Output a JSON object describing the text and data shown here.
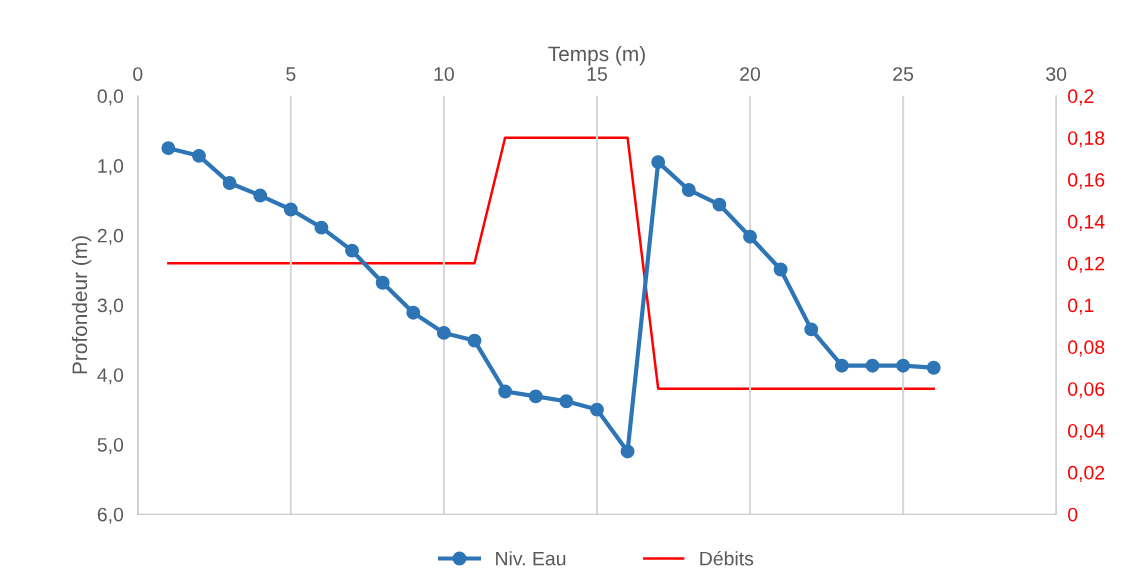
{
  "chart_data": {
    "type": "line",
    "xlabel": "Temps (m)",
    "ylabel": "Profondeur (m)",
    "x": [
      1,
      2,
      3,
      4,
      5,
      6,
      7,
      8,
      9,
      10,
      11,
      12,
      13,
      14,
      15,
      16,
      17,
      18,
      19,
      20,
      21,
      22,
      23,
      24,
      25,
      26
    ],
    "series": [
      {
        "name": "Niv. Eau",
        "color": "#2e75b6",
        "marker": "circle",
        "values": [
          0.75,
          0.86,
          1.25,
          1.43,
          1.63,
          1.89,
          2.22,
          2.68,
          3.11,
          3.4,
          3.51,
          4.24,
          4.31,
          4.38,
          4.5,
          5.1,
          0.95,
          1.35,
          1.56,
          2.02,
          2.49,
          3.35,
          3.87,
          3.87,
          3.87,
          3.9
        ]
      },
      {
        "name": "Débits",
        "color": "#ff0000",
        "marker": "none",
        "axis": "y2",
        "values": [
          0.12,
          0.12,
          0.12,
          0.12,
          0.12,
          0.12,
          0.12,
          0.12,
          0.12,
          0.12,
          0.12,
          0.18,
          0.18,
          0.18,
          0.18,
          0.18,
          0.06,
          0.06,
          0.06,
          0.06,
          0.06,
          0.06,
          0.06,
          0.06,
          0.06,
          0.06
        ]
      }
    ],
    "xlim": [
      0,
      30
    ],
    "xticks": [
      0,
      5,
      10,
      15,
      20,
      25,
      30
    ],
    "ylim": [
      6,
      0
    ],
    "yticks": [
      {
        "value": 0,
        "label": "0,0"
      },
      {
        "value": 1,
        "label": "1,0"
      },
      {
        "value": 2,
        "label": "2,0"
      },
      {
        "value": 3,
        "label": "3,0"
      },
      {
        "value": 4,
        "label": "4,0"
      },
      {
        "value": 5,
        "label": "5,0"
      },
      {
        "value": 6,
        "label": "6,0"
      }
    ],
    "y2lim": [
      0,
      0.2
    ],
    "y2ticks": [
      0,
      {
        "value": 0.02,
        "label": "0,02"
      },
      {
        "value": 0.04,
        "label": "0,04"
      },
      {
        "value": 0.06,
        "label": "0,06"
      },
      {
        "value": 0.08,
        "label": "0,08"
      },
      {
        "value": 0.1,
        "label": "0,1"
      },
      {
        "value": 0.12,
        "label": "0,12"
      },
      {
        "value": 0.14,
        "label": "0,14"
      },
      {
        "value": 0.16,
        "label": "0,16"
      },
      {
        "value": 0.18,
        "label": "0,18"
      },
      {
        "value": 0.2,
        "label": "0,2"
      }
    ],
    "grid": "x",
    "legend": "bottom"
  }
}
